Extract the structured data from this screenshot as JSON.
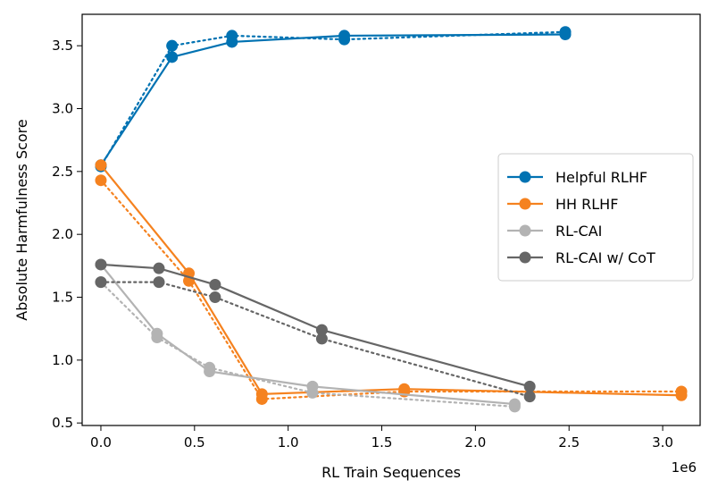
{
  "chart_data": {
    "type": "line",
    "xlabel": "RL Train Sequences",
    "ylabel": "Absolute Harmfulness Score",
    "x_offset_label": "1e6",
    "xlim": [
      -0.1,
      3.2
    ],
    "ylim": [
      0.48,
      3.75
    ],
    "x_ticks": [
      0.0,
      0.5,
      1.0,
      1.5,
      2.0,
      2.5,
      3.0
    ],
    "x_tick_labels": [
      "0.0",
      "0.5",
      "1.0",
      "1.5",
      "2.0",
      "2.5",
      "3.0"
    ],
    "y_ticks": [
      0.5,
      1.0,
      1.5,
      2.0,
      2.5,
      3.0,
      3.5
    ],
    "y_tick_labels": [
      "0.5",
      "1.0",
      "1.5",
      "2.0",
      "2.5",
      "3.0",
      "3.5"
    ],
    "grid": false,
    "legend_position": "center-right",
    "series": [
      {
        "name": "Helpful RLHF",
        "color": "#0072B2",
        "solid": {
          "x": [
            0.0,
            0.38,
            0.7,
            1.3,
            2.48
          ],
          "y": [
            2.55,
            3.41,
            3.53,
            3.58,
            3.59
          ]
        },
        "dotted": {
          "x": [
            0.0,
            0.38,
            0.7,
            1.3,
            2.48
          ],
          "y": [
            2.54,
            3.5,
            3.58,
            3.55,
            3.61
          ]
        }
      },
      {
        "name": "HH RLHF",
        "color": "#F5821F",
        "solid": {
          "x": [
            0.0,
            0.47,
            0.86,
            1.62,
            3.1
          ],
          "y": [
            2.55,
            1.69,
            0.73,
            0.77,
            0.72
          ]
        },
        "dotted": {
          "x": [
            0.0,
            0.47,
            0.86,
            1.62,
            3.1
          ],
          "y": [
            2.43,
            1.63,
            0.69,
            0.75,
            0.75
          ]
        }
      },
      {
        "name": "RL-CAI",
        "color": "#B3B3B3",
        "solid": {
          "x": [
            0.0,
            0.3,
            0.58,
            1.13,
            2.21
          ],
          "y": [
            1.76,
            1.21,
            0.91,
            0.79,
            0.65
          ]
        },
        "dotted": {
          "x": [
            0.0,
            0.3,
            0.58,
            1.13,
            2.21
          ],
          "y": [
            1.62,
            1.18,
            0.94,
            0.74,
            0.63
          ]
        }
      },
      {
        "name": "RL-CAI w/ CoT",
        "color": "#666666",
        "solid": {
          "x": [
            0.0,
            0.31,
            0.61,
            1.18,
            2.29
          ],
          "y": [
            1.76,
            1.73,
            1.6,
            1.24,
            0.79
          ]
        },
        "dotted": {
          "x": [
            0.0,
            0.31,
            0.61,
            1.18,
            2.29
          ],
          "y": [
            1.62,
            1.62,
            1.5,
            1.17,
            0.71
          ]
        }
      }
    ]
  }
}
